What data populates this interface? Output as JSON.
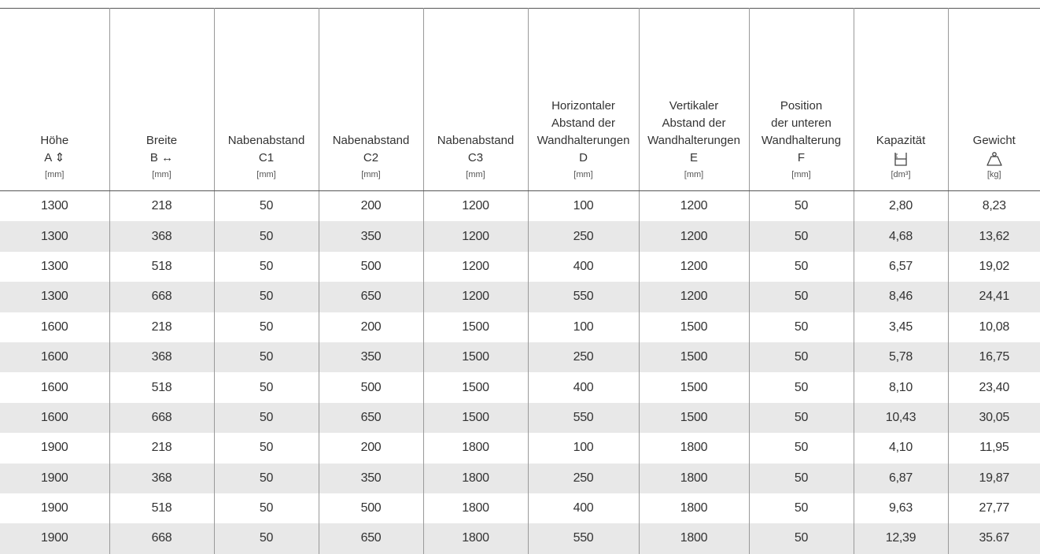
{
  "table": {
    "header": [
      {
        "lines": [
          "Höhe"
        ],
        "symbol": "A ⇕",
        "unit": "[mm]"
      },
      {
        "lines": [
          "Breite"
        ],
        "symbol": "B ↔",
        "unit": "[mm]"
      },
      {
        "lines": [
          "Nabenabstand"
        ],
        "symbol": "C1",
        "unit": "[mm]"
      },
      {
        "lines": [
          "Nabenabstand"
        ],
        "symbol": "C2",
        "unit": "[mm]"
      },
      {
        "lines": [
          "Nabenabstand"
        ],
        "symbol": "C3",
        "unit": "[mm]"
      },
      {
        "lines": [
          "Horizontaler",
          "Abstand der",
          "Wandhalterungen"
        ],
        "symbol": "D",
        "unit": "[mm]"
      },
      {
        "lines": [
          "Vertikaler",
          "Abstand der",
          "Wandhalterungen"
        ],
        "symbol": "E",
        "unit": "[mm]"
      },
      {
        "lines": [
          "Position",
          "der unteren",
          "Wandhalterung"
        ],
        "symbol": "F",
        "unit": "[mm]"
      },
      {
        "lines": [
          "Kapazität"
        ],
        "unit": "[dm³]"
      },
      {
        "lines": [
          "Gewicht"
        ],
        "unit": "[kg]"
      }
    ],
    "rows": [
      [
        "1300",
        "218",
        "50",
        "200",
        "1200",
        "100",
        "1200",
        "50",
        "2,80",
        "8,23"
      ],
      [
        "1300",
        "368",
        "50",
        "350",
        "1200",
        "250",
        "1200",
        "50",
        "4,68",
        "13,62"
      ],
      [
        "1300",
        "518",
        "50",
        "500",
        "1200",
        "400",
        "1200",
        "50",
        "6,57",
        "19,02"
      ],
      [
        "1300",
        "668",
        "50",
        "650",
        "1200",
        "550",
        "1200",
        "50",
        "8,46",
        "24,41"
      ],
      [
        "1600",
        "218",
        "50",
        "200",
        "1500",
        "100",
        "1500",
        "50",
        "3,45",
        "10,08"
      ],
      [
        "1600",
        "368",
        "50",
        "350",
        "1500",
        "250",
        "1500",
        "50",
        "5,78",
        "16,75"
      ],
      [
        "1600",
        "518",
        "50",
        "500",
        "1500",
        "400",
        "1500",
        "50",
        "8,10",
        "23,40"
      ],
      [
        "1600",
        "668",
        "50",
        "650",
        "1500",
        "550",
        "1500",
        "50",
        "10,43",
        "30,05"
      ],
      [
        "1900",
        "218",
        "50",
        "200",
        "1800",
        "100",
        "1800",
        "50",
        "4,10",
        "11,95"
      ],
      [
        "1900",
        "368",
        "50",
        "350",
        "1800",
        "250",
        "1800",
        "50",
        "6,87",
        "19,87"
      ],
      [
        "1900",
        "518",
        "50",
        "500",
        "1800",
        "400",
        "1800",
        "50",
        "9,63",
        "27,77"
      ],
      [
        "1900",
        "668",
        "50",
        "650",
        "1800",
        "550",
        "1800",
        "50",
        "12,39",
        "35.67"
      ]
    ]
  }
}
